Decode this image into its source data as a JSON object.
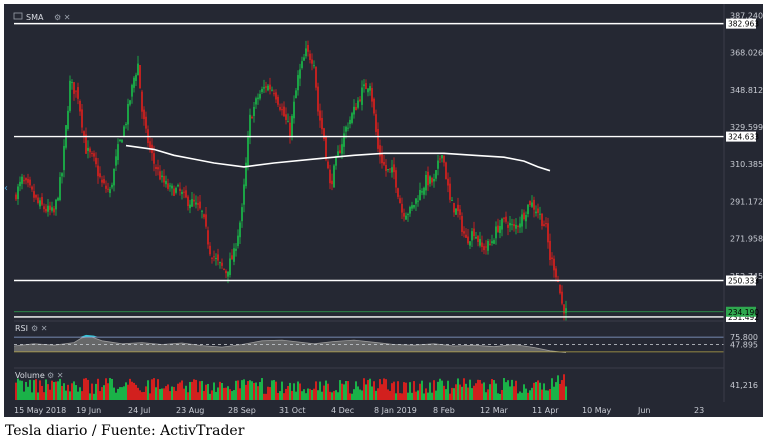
{
  "caption": "Tesla diario / Fuente: ActivTrader",
  "panes": {
    "price_label": "SMA",
    "rsi_label": "RSI",
    "volume_label": "Volume"
  },
  "colors": {
    "background": "#252833",
    "up": "#19c24a",
    "down": "#e5201c",
    "sma": "#ffffff",
    "support_lines": "#ffffff",
    "rsi_fill": "#6f6f6f",
    "rsi_overbought_fill": "#36c6d9",
    "rsi_level_upper": "#8fa8d8",
    "rsi_level_lower": "#b9a94a"
  },
  "chart_data": [
    {
      "type": "candlestick",
      "label": "SMA",
      "y_axis_ticks": [
        "387.240",
        "368.026",
        "348.812",
        "329.599",
        "310.385",
        "291.172",
        "271.958",
        "252.745"
      ],
      "ylim": [
        232,
        390
      ],
      "x_axis_ticks": [
        "15 May 2018",
        "19 Jun",
        "24 Jul",
        "23 Aug",
        "28 Sep",
        "31 Oct",
        "4 Dec",
        "8 Jan 2019",
        "8 Feb",
        "12 Mar",
        "11 Apr",
        "10 May",
        "Jun",
        "23"
      ],
      "horizontal_levels": [
        {
          "value": 382.963,
          "label": "382.963"
        },
        {
          "value": 324.633,
          "label": "324.633"
        },
        {
          "value": 250.333,
          "label": "250.333"
        },
        {
          "value": 231.492,
          "label": "231.492"
        }
      ],
      "last_price": {
        "value": 234.19,
        "label": "234.190"
      },
      "close_path": [
        [
          0,
          293
        ],
        [
          4,
          302
        ],
        [
          8,
          297
        ],
        [
          12,
          290
        ],
        [
          16,
          287
        ],
        [
          20,
          285
        ],
        [
          24,
          306
        ],
        [
          28,
          352
        ],
        [
          32,
          346
        ],
        [
          36,
          318
        ],
        [
          40,
          312
        ],
        [
          44,
          300
        ],
        [
          48,
          296
        ],
        [
          52,
          318
        ],
        [
          56,
          333
        ],
        [
          60,
          355
        ],
        [
          62,
          362
        ],
        [
          64,
          338
        ],
        [
          66,
          326
        ],
        [
          70,
          311
        ],
        [
          74,
          302
        ],
        [
          78,
          297
        ],
        [
          82,
          297
        ],
        [
          86,
          292
        ],
        [
          90,
          290
        ],
        [
          94,
          285
        ],
        [
          98,
          266
        ],
        [
          102,
          259
        ],
        [
          106,
          255
        ],
        [
          110,
          264
        ],
        [
          114,
          286
        ],
        [
          118,
          334
        ],
        [
          122,
          345
        ],
        [
          126,
          351
        ],
        [
          130,
          349
        ],
        [
          134,
          338
        ],
        [
          138,
          327
        ],
        [
          142,
          355
        ],
        [
          146,
          368
        ],
        [
          150,
          364
        ],
        [
          152,
          338
        ],
        [
          155,
          324
        ],
        [
          158,
          299
        ],
        [
          162,
          315
        ],
        [
          166,
          329
        ],
        [
          170,
          338
        ],
        [
          174,
          348
        ],
        [
          178,
          353
        ],
        [
          182,
          318
        ],
        [
          186,
          307
        ],
        [
          190,
          306
        ],
        [
          194,
          286
        ],
        [
          198,
          286
        ],
        [
          202,
          294
        ],
        [
          206,
          302
        ],
        [
          210,
          301
        ],
        [
          214,
          318
        ],
        [
          218,
          291
        ],
        [
          222,
          285
        ],
        [
          226,
          271
        ],
        [
          230,
          276
        ],
        [
          234,
          267
        ],
        [
          238,
          269
        ],
        [
          242,
          278
        ],
        [
          246,
          281
        ],
        [
          250,
          277
        ],
        [
          254,
          283
        ],
        [
          258,
          291
        ],
        [
          262,
          286
        ],
        [
          266,
          277
        ],
        [
          268,
          262
        ],
        [
          270,
          258
        ],
        [
          272,
          250
        ],
        [
          274,
          238
        ],
        [
          276,
          234
        ]
      ],
      "sma_path": [
        [
          56,
          320
        ],
        [
          70,
          318
        ],
        [
          80,
          315
        ],
        [
          90,
          313
        ],
        [
          100,
          311
        ],
        [
          115,
          309
        ],
        [
          130,
          311
        ],
        [
          150,
          313
        ],
        [
          170,
          315
        ],
        [
          185,
          316
        ],
        [
          200,
          316
        ],
        [
          215,
          316
        ],
        [
          230,
          315
        ],
        [
          245,
          314
        ],
        [
          255,
          312
        ],
        [
          262,
          309
        ],
        [
          268,
          307
        ]
      ]
    },
    {
      "type": "area",
      "label": "RSI",
      "y_axis_ticks": [
        "75.800",
        "47.895"
      ],
      "levels": [
        70,
        30
      ],
      "x": [
        0,
        10,
        20,
        30,
        34,
        38,
        44,
        54,
        64,
        74,
        84,
        94,
        104,
        114,
        124,
        134,
        140,
        150,
        160,
        170,
        180,
        190,
        200,
        210,
        220,
        230,
        240,
        250,
        260,
        268,
        276
      ],
      "values": [
        46,
        52,
        48,
        55,
        68,
        72,
        60,
        52,
        55,
        50,
        54,
        47,
        43,
        50,
        60,
        62,
        58,
        52,
        58,
        62,
        56,
        50,
        48,
        52,
        46,
        48,
        44,
        50,
        42,
        33,
        28
      ]
    },
    {
      "type": "bar",
      "label": "Volume",
      "y_axis_ticks": [
        "41,216"
      ]
    }
  ]
}
